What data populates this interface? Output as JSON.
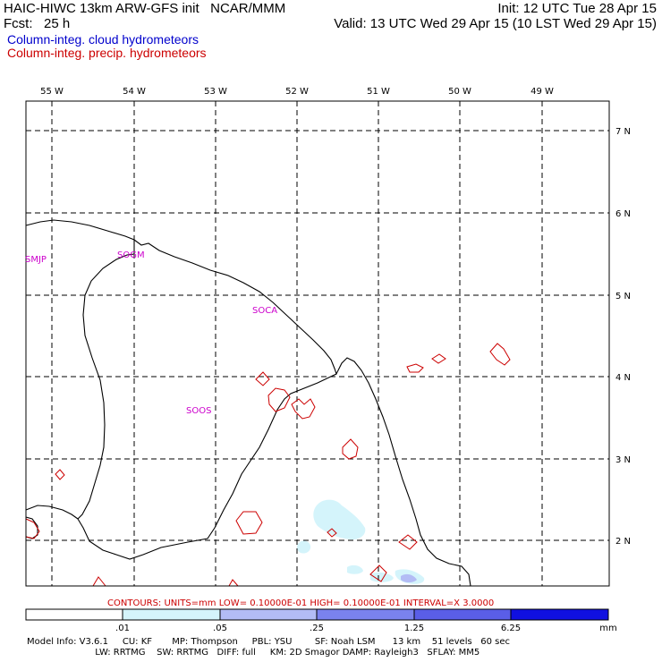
{
  "header": {
    "title": "HAIC-HIWC 13km ARW-GFS init   NCAR/MMM",
    "init": "Init: 12 UTC Tue 28 Apr 15",
    "fcst": "Fcst:   25 h",
    "valid": "Valid: 13 UTC Wed 29 Apr 15 (10 LST Wed 29 Apr 15)",
    "legend_cloud": "Column-integ. cloud hydrometeors",
    "legend_precip": "Column-integ. precip. hydrometeors"
  },
  "colors": {
    "cloud_text": "#0000cc",
    "precip": "#cc0000",
    "station": "#cc00cc",
    "cloud_fill_1": "#d4f4fb",
    "cloud_fill_2": "#b3bcf5",
    "cloud_fill_3": "#7a82ee",
    "cloud_fill_4": "#5a5ee8",
    "cloud_fill_5": "#1010e0"
  },
  "map": {
    "lon_labels": [
      "55 W",
      "54 W",
      "53 W",
      "52 W",
      "51 W",
      "50 W",
      "49 W"
    ],
    "lat_labels": [
      "7 N",
      "6 N",
      "5 N",
      "4 N",
      "3 N",
      "2 N"
    ],
    "stations": [
      "SMJP",
      "SOGM",
      "SOCA",
      "SOOS"
    ]
  },
  "footer": {
    "contours": "CONTOURS:  UNITS=mm  LOW= 0.10000E-01  HIGH= 0.10000E-01  INTERVAL=X  3.0000",
    "colorbar_labels": [
      ".01",
      ".05",
      ".25",
      "1.25",
      "6.25"
    ],
    "colorbar_unit": "mm",
    "model_line1": "Model Info: V3.6.1     CU: KF       MP: Thompson     PBL: YSU        SF: Noah LSM      13 km    51 levels   60 sec",
    "model_line2": "                        LW: RRTMG    SW: RRTMG   DIFF: full     KM: 2D Smagor DAMP: Rayleigh3   SFLAY: MM5"
  }
}
